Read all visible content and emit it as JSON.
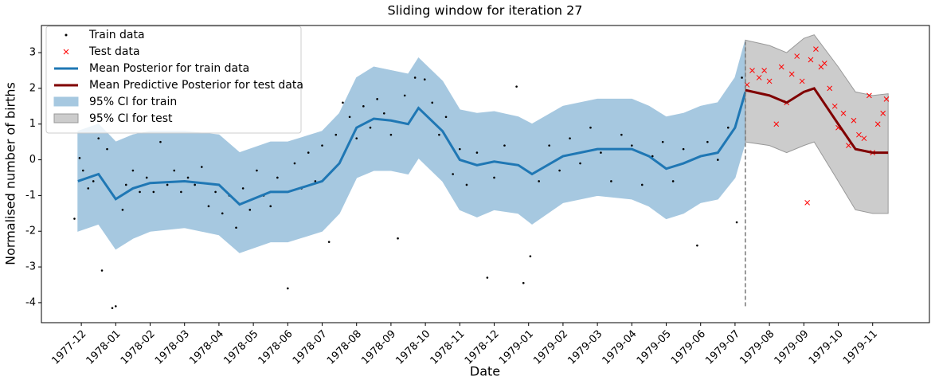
{
  "chart_data": {
    "type": "line",
    "title": "Sliding window for iteration 27",
    "xlabel": "Date",
    "ylabel": "Normalised number of births",
    "xlim": [
      -1.16,
      24.65
    ],
    "ylim": [
      -4.56,
      3.76
    ],
    "yticks": [
      -4,
      -3,
      -2,
      -1,
      0,
      1,
      2,
      3
    ],
    "xticks": [
      {
        "value": 0,
        "label": "1977-12"
      },
      {
        "value": 1,
        "label": "1978-01"
      },
      {
        "value": 2,
        "label": "1978-02"
      },
      {
        "value": 3,
        "label": "1978-03"
      },
      {
        "value": 4,
        "label": "1978-04"
      },
      {
        "value": 5,
        "label": "1978-05"
      },
      {
        "value": 6,
        "label": "1978-06"
      },
      {
        "value": 7,
        "label": "1978-07"
      },
      {
        "value": 8,
        "label": "1978-08"
      },
      {
        "value": 9,
        "label": "1978-09"
      },
      {
        "value": 10,
        "label": "1978-10"
      },
      {
        "value": 11,
        "label": "1978-11"
      },
      {
        "value": 12,
        "label": "1978-12"
      },
      {
        "value": 13,
        "label": "1979-01"
      },
      {
        "value": 14,
        "label": "1979-02"
      },
      {
        "value": 15,
        "label": "1979-03"
      },
      {
        "value": 16,
        "label": "1979-04"
      },
      {
        "value": 17,
        "label": "1979-05"
      },
      {
        "value": 18,
        "label": "1979-06"
      },
      {
        "value": 19,
        "label": "1979-07"
      },
      {
        "value": 20,
        "label": "1979-08"
      },
      {
        "value": 21,
        "label": "1979-09"
      },
      {
        "value": 22,
        "label": "1979-10"
      },
      {
        "value": 23,
        "label": "1979-11"
      }
    ],
    "split_x": 19.3,
    "split_range": [
      -4.1,
      3.3
    ],
    "legend": "upper left",
    "series": [
      {
        "name": "95% CI for train",
        "kind": "band",
        "color": "#a6c8e0",
        "edge": "#a6c8e0",
        "x": [
          -0.1,
          0.5,
          1,
          1.5,
          2,
          3,
          4,
          4.6,
          5.5,
          6,
          7,
          7.5,
          8,
          8.5,
          9,
          9.5,
          9.8,
          10.5,
          11,
          11.5,
          12,
          12.7,
          13.1,
          14,
          15,
          16,
          16.5,
          17,
          17.5,
          18,
          18.5,
          19,
          19.3
        ],
        "upper": [
          0.8,
          1.0,
          0.5,
          0.7,
          0.8,
          0.8,
          0.7,
          0.2,
          0.5,
          0.5,
          0.8,
          1.3,
          2.3,
          2.6,
          2.5,
          2.4,
          2.85,
          2.2,
          1.4,
          1.3,
          1.35,
          1.2,
          1.0,
          1.5,
          1.7,
          1.7,
          1.5,
          1.2,
          1.3,
          1.5,
          1.6,
          2.3,
          3.35
        ],
        "lower": [
          -2.0,
          -1.8,
          -2.5,
          -2.2,
          -2.0,
          -1.9,
          -2.1,
          -2.6,
          -2.3,
          -2.3,
          -2.0,
          -1.5,
          -0.5,
          -0.3,
          -0.3,
          -0.4,
          0.05,
          -0.6,
          -1.4,
          -1.6,
          -1.4,
          -1.5,
          -1.8,
          -1.2,
          -1.0,
          -1.1,
          -1.3,
          -1.65,
          -1.5,
          -1.2,
          -1.1,
          -0.5,
          0.5
        ]
      },
      {
        "name": "95% CI for test",
        "kind": "band",
        "color": "#cccccc",
        "edge": "#999999",
        "x": [
          19.3,
          20,
          20.5,
          21,
          21.3,
          22,
          22.5,
          23,
          23.45
        ],
        "upper": [
          3.35,
          3.2,
          3.0,
          3.4,
          3.5,
          2.6,
          1.9,
          1.8,
          1.85
        ],
        "lower": [
          0.5,
          0.4,
          0.2,
          0.4,
          0.5,
          -0.6,
          -1.4,
          -1.5,
          -1.5
        ]
      },
      {
        "name": "Train data",
        "kind": "scatter",
        "marker": "dot",
        "color": "#000000",
        "x": [
          -0.2,
          -0.05,
          0.05,
          0.2,
          0.35,
          0.5,
          0.6,
          0.75,
          0.9,
          1.0,
          1.2,
          1.3,
          1.5,
          1.7,
          1.9,
          2.1,
          2.3,
          2.5,
          2.7,
          2.9,
          3.1,
          3.3,
          3.5,
          3.7,
          3.9,
          4.1,
          4.3,
          4.5,
          4.7,
          4.9,
          5.1,
          5.3,
          5.5,
          5.7,
          6.0,
          6.2,
          6.4,
          6.6,
          6.8,
          7.0,
          7.2,
          7.4,
          7.6,
          7.8,
          8.0,
          8.2,
          8.4,
          8.6,
          8.8,
          9.0,
          9.2,
          9.4,
          9.7,
          9.98,
          10.2,
          10.4,
          10.6,
          10.8,
          11.0,
          11.2,
          11.5,
          11.8,
          12.0,
          12.3,
          12.65,
          12.85,
          13.05,
          13.3,
          13.6,
          13.9,
          14.2,
          14.5,
          14.8,
          15.1,
          15.4,
          15.7,
          16.0,
          16.3,
          16.6,
          16.9,
          17.2,
          17.5,
          17.9,
          18.2,
          18.5,
          18.8,
          19.05,
          19.2
        ],
        "values": [
          -1.65,
          0.05,
          -0.3,
          -0.8,
          -0.6,
          0.6,
          -3.1,
          0.3,
          -4.15,
          -4.1,
          -1.4,
          -0.7,
          -0.3,
          -0.9,
          -0.5,
          -0.9,
          0.5,
          -0.7,
          -0.3,
          -0.9,
          -0.5,
          -0.7,
          -0.2,
          -1.3,
          -0.9,
          -1.5,
          -1.0,
          -1.9,
          -0.8,
          -1.4,
          -0.3,
          -1.0,
          -1.3,
          -0.5,
          -3.6,
          -0.1,
          -0.8,
          0.2,
          -0.6,
          0.4,
          -2.3,
          0.7,
          1.6,
          1.2,
          0.6,
          1.5,
          0.9,
          1.7,
          1.3,
          0.7,
          -2.2,
          1.8,
          2.3,
          2.25,
          1.6,
          0.7,
          1.2,
          -0.4,
          0.3,
          -0.7,
          0.2,
          -3.3,
          -0.5,
          0.4,
          2.05,
          -3.45,
          -2.7,
          -0.6,
          0.4,
          -0.3,
          0.6,
          -0.1,
          0.9,
          0.2,
          -0.6,
          0.7,
          0.4,
          -0.7,
          0.1,
          0.5,
          -0.6,
          0.3,
          -2.4,
          0.5,
          0.0,
          0.9,
          -1.75,
          2.3
        ]
      },
      {
        "name": "Test data",
        "kind": "scatter",
        "marker": "cross",
        "color": "#ff0000",
        "x": [
          19.35,
          19.5,
          19.7,
          19.85,
          20.0,
          20.2,
          20.35,
          20.5,
          20.65,
          20.8,
          20.95,
          21.1,
          21.2,
          21.35,
          21.5,
          21.6,
          21.75,
          21.9,
          22.0,
          22.15,
          22.3,
          22.45,
          22.6,
          22.75,
          22.9,
          23.0,
          23.15,
          23.3,
          23.4
        ],
        "values": [
          2.1,
          2.5,
          2.3,
          2.5,
          2.2,
          1.0,
          2.6,
          1.6,
          2.4,
          2.9,
          2.2,
          -1.2,
          2.8,
          3.1,
          2.6,
          2.7,
          2.0,
          1.5,
          0.9,
          1.3,
          0.4,
          1.1,
          0.7,
          0.6,
          1.8,
          0.2,
          1.0,
          1.3,
          1.7
        ]
      },
      {
        "name": "Mean Posterior for train data",
        "kind": "line",
        "color": "#1f77b4",
        "x": [
          -0.1,
          0.5,
          1,
          1.5,
          2,
          3,
          4,
          4.6,
          5.5,
          6,
          7,
          7.5,
          8,
          8.5,
          9,
          9.5,
          9.8,
          10.5,
          11,
          11.5,
          12,
          12.7,
          13.1,
          14,
          15,
          16,
          16.5,
          17,
          17.5,
          18,
          18.5,
          19,
          19.3
        ],
        "values": [
          -0.6,
          -0.4,
          -1.1,
          -0.8,
          -0.65,
          -0.6,
          -0.7,
          -1.25,
          -0.9,
          -0.9,
          -0.6,
          -0.1,
          0.9,
          1.15,
          1.1,
          1.0,
          1.45,
          0.8,
          0.0,
          -0.15,
          -0.05,
          -0.15,
          -0.4,
          0.1,
          0.3,
          0.3,
          0.1,
          -0.25,
          -0.1,
          0.1,
          0.2,
          0.9,
          1.9
        ]
      },
      {
        "name": "Mean Predictive Posterior for test data",
        "kind": "line",
        "color": "#800000",
        "x": [
          19.3,
          20,
          20.5,
          21,
          21.3,
          22,
          22.5,
          23,
          23.45
        ],
        "values": [
          1.95,
          1.8,
          1.6,
          1.9,
          2.0,
          1.0,
          0.3,
          0.2,
          0.2
        ]
      }
    ],
    "legend_order": [
      2,
      3,
      4,
      5,
      0,
      1
    ]
  }
}
